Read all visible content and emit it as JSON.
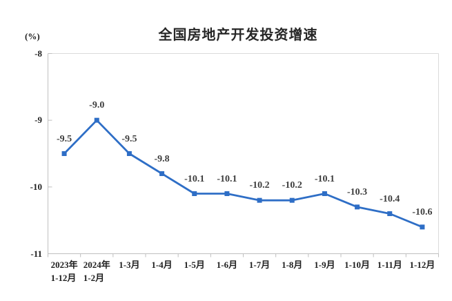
{
  "chart_data": {
    "type": "line",
    "title": "全国房地产开发投资增速",
    "unit_label": "(%)",
    "categories": [
      "2023年\n1-12月",
      "2024年\n1-2月",
      "1-3月",
      "1-4月",
      "1-5月",
      "1-6月",
      "1-7月",
      "1-8月",
      "1-9月",
      "1-10月",
      "1-11月",
      "1-12月"
    ],
    "values": [
      -9.5,
      -9.0,
      -9.5,
      -9.8,
      -10.1,
      -10.1,
      -10.2,
      -10.2,
      -10.1,
      -10.3,
      -10.4,
      -10.6
    ],
    "data_labels": [
      "-9.5",
      "-9.0",
      "-9.5",
      "-9.8",
      "-10.1",
      "-10.1",
      "-10.2",
      "-10.2",
      "-10.1",
      "-10.3",
      "-10.4",
      "-10.6"
    ],
    "ylim": [
      -11,
      -8
    ],
    "y_ticks": [
      -8,
      -9,
      -10,
      -11
    ],
    "y_tick_labels": [
      "-8",
      "-9",
      "-10",
      "-11"
    ],
    "xlabel": "",
    "ylabel": "(%)",
    "grid": false,
    "legend": false,
    "marker": "square",
    "line_color": "#2e6ec6",
    "marker_color": "#2e6ec6",
    "data_label_color": "#3d3d3d",
    "tick_label_color": "#1f1f1f",
    "title_color": "#262626",
    "axis_color": "#bfbfbf",
    "border_color": "#dadada",
    "background": "#ffffff"
  }
}
